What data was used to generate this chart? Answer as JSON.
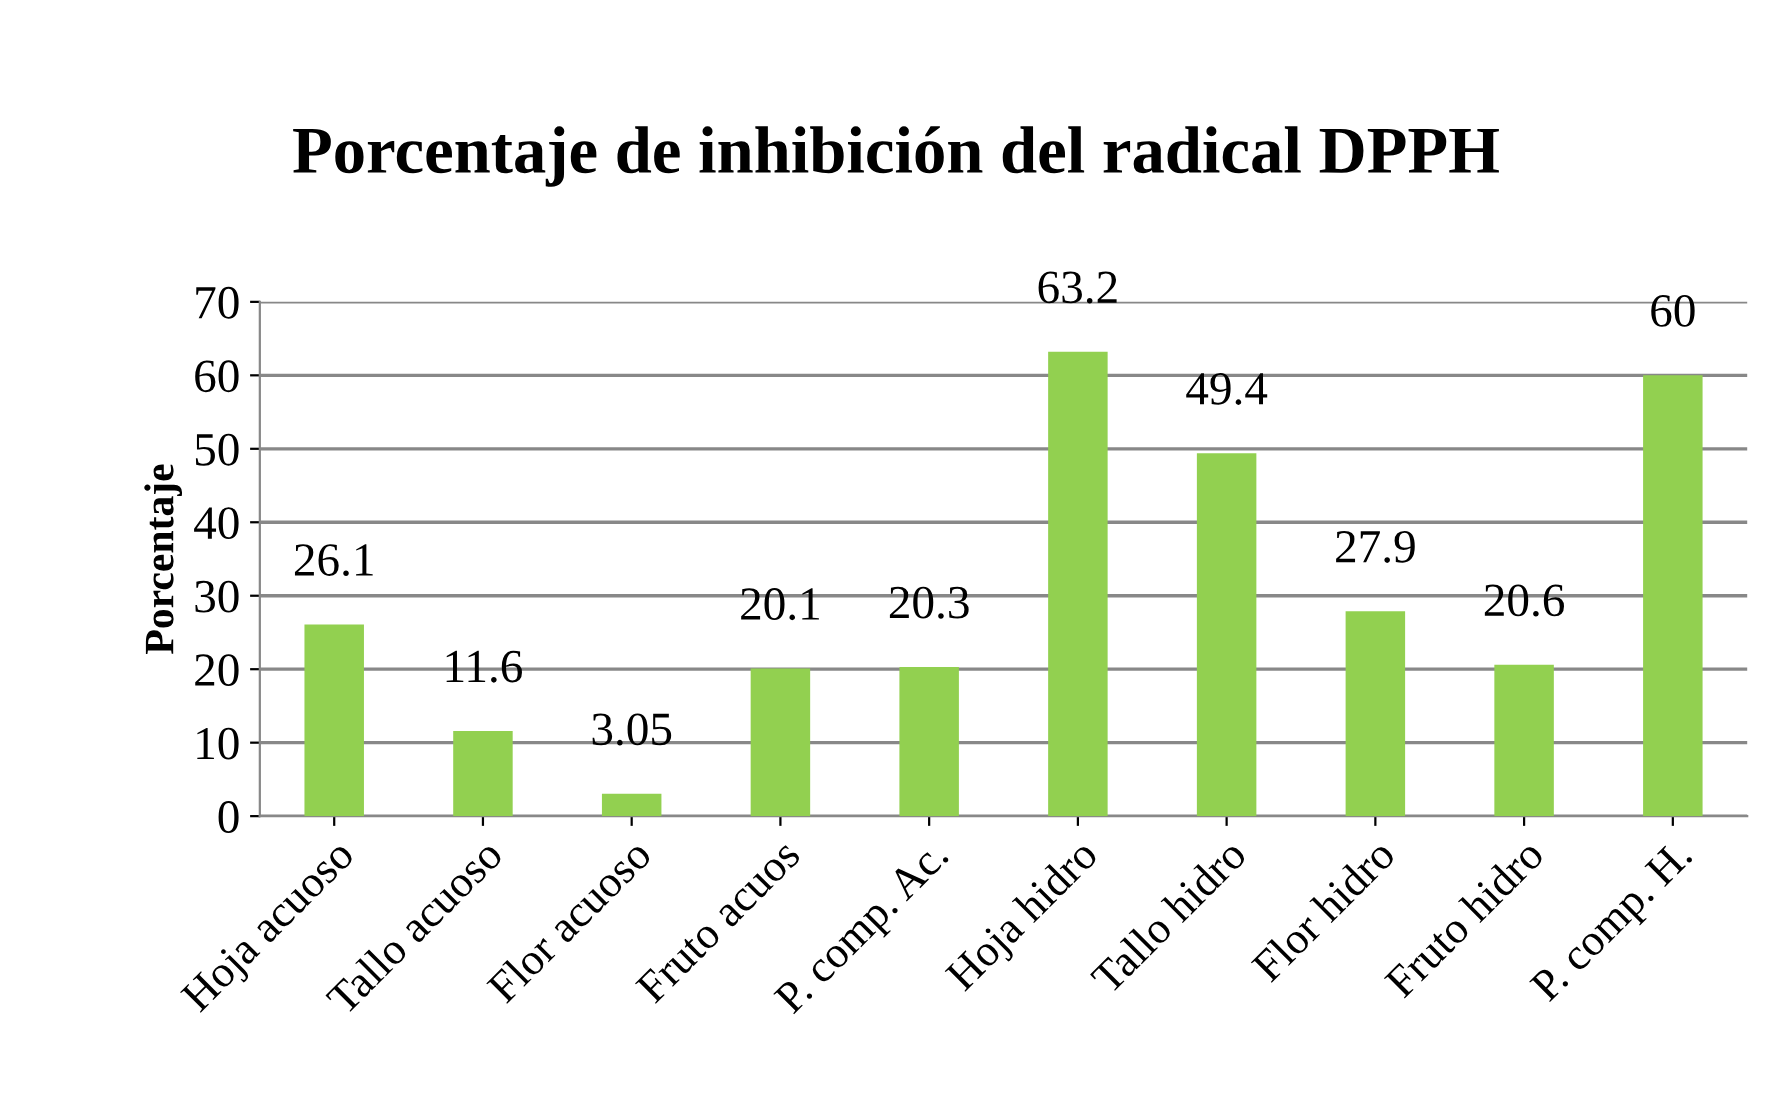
{
  "chart_data": {
    "type": "bar",
    "title": "Porcentaje de inhibición del radical DPPH",
    "ylabel": "Porcentaje",
    "categories": [
      "Hoja acuoso",
      "Tallo acuoso",
      "Flor acuoso",
      "Fruto acuos",
      "P. comp. Ac.",
      "Hoja hidro",
      "Tallo hidro",
      "Flor hidro",
      "Fruto hidro",
      "P. comp. H."
    ],
    "values": [
      26.1,
      11.6,
      3.05,
      20.1,
      20.3,
      63.2,
      49.4,
      27.9,
      20.6,
      60
    ],
    "color": "#92d050",
    "ylim": [
      0,
      70
    ],
    "yticks": [
      0,
      10,
      20,
      30,
      40,
      50,
      60,
      70
    ],
    "grid": "y",
    "data_labels": true
  }
}
